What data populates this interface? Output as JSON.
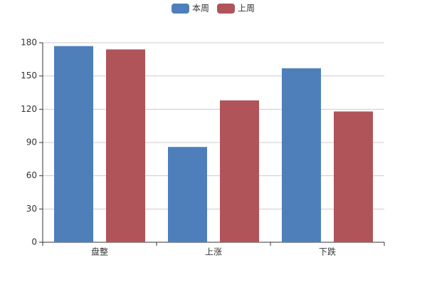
{
  "chart_data": {
    "type": "bar",
    "categories": [
      "盘整",
      "上涨",
      "下跌"
    ],
    "series": [
      {
        "name": "本周",
        "color": "#4e7fbb",
        "values": [
          177,
          86,
          157
        ]
      },
      {
        "name": "上周",
        "color": "#b0545a",
        "values": [
          174,
          128,
          118
        ]
      }
    ],
    "ylim": [
      0,
      180
    ],
    "yticks": [
      0,
      30,
      60,
      90,
      120,
      150,
      180
    ],
    "grid": true,
    "legend": "top"
  }
}
